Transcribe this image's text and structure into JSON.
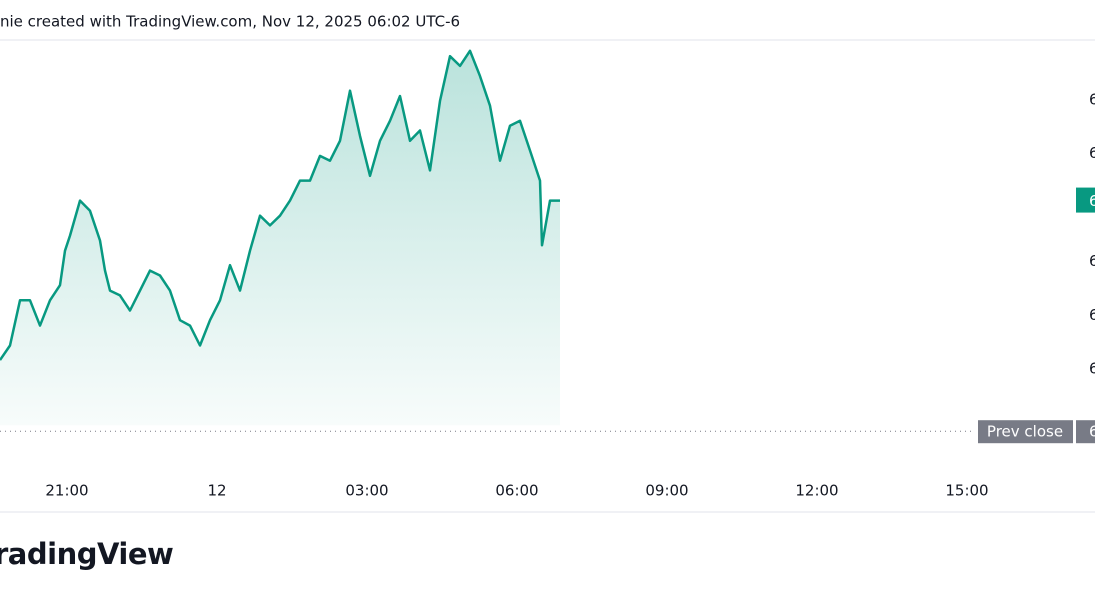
{
  "chart_data": {
    "type": "area",
    "header": "nie created with TradingView.com, Nov 12, 2025 06:02 UTC-6",
    "logo": "radingView",
    "color": "#089981",
    "x": [
      19.66,
      19.86,
      20.06,
      20.26,
      20.46,
      20.66,
      20.86,
      20.96,
      21.06,
      21.26,
      21.46,
      21.66,
      21.76,
      21.86,
      22.06,
      22.26,
      22.46,
      22.66,
      22.86,
      23.06,
      23.26,
      23.46,
      23.66,
      23.86,
      24.06,
      24.26,
      24.46,
      24.66,
      24.86,
      25.06,
      25.26,
      25.46,
      25.66,
      25.86,
      26.06,
      26.26,
      26.46,
      26.66,
      26.86,
      27.06,
      27.26,
      27.46,
      27.66,
      27.86,
      28.06,
      28.26,
      28.46,
      28.66,
      28.86,
      29.06,
      29.26,
      29.46,
      29.66,
      29.86,
      30.06,
      30.26,
      30.46,
      30.5,
      30.66,
      30.86
    ],
    "values": [
      11.7,
      14.4,
      22.8,
      22.8,
      18.1,
      22.8,
      25.6,
      32.0,
      34.8,
      41.3,
      39.4,
      33.9,
      28.3,
      24.6,
      23.7,
      20.9,
      24.6,
      28.3,
      27.4,
      24.6,
      19.1,
      18.1,
      14.4,
      19.1,
      22.8,
      29.3,
      24.6,
      32.0,
      38.5,
      36.7,
      38.5,
      41.3,
      45.0,
      45.0,
      49.6,
      48.7,
      52.4,
      61.7,
      53.3,
      45.9,
      52.4,
      56.1,
      60.7,
      52.4,
      54.3,
      46.9,
      59.8,
      68.1,
      66.3,
      69.1,
      64.4,
      58.9,
      48.7,
      55.2,
      56.1,
      50.6,
      45.0,
      33.0,
      41.3,
      41.3
    ],
    "xlim": [
      19.66,
      41.16
    ],
    "xticks": [
      {
        "value": 21,
        "label": "21:00"
      },
      {
        "value": 24,
        "label": "12"
      },
      {
        "value": 27,
        "label": "03:00"
      },
      {
        "value": 30,
        "label": "06:00"
      },
      {
        "value": 33,
        "label": "09:00"
      },
      {
        "value": 36,
        "label": "12:00"
      },
      {
        "value": 39,
        "label": "15:00"
      }
    ],
    "ylim": [
      -8.7,
      71.1
    ],
    "yticks": [
      {
        "value": 60,
        "label": "6"
      },
      {
        "value": 50,
        "label": "6"
      },
      {
        "value": 40,
        "label": "6"
      },
      {
        "value": 30,
        "label": "6"
      },
      {
        "value": 20,
        "label": "6"
      },
      {
        "value": 10,
        "label": "6"
      }
    ],
    "last_price": {
      "value": 41.3,
      "label": "6"
    },
    "prev_close": {
      "value": -1.5,
      "title": "Prev close",
      "label": "6"
    }
  }
}
